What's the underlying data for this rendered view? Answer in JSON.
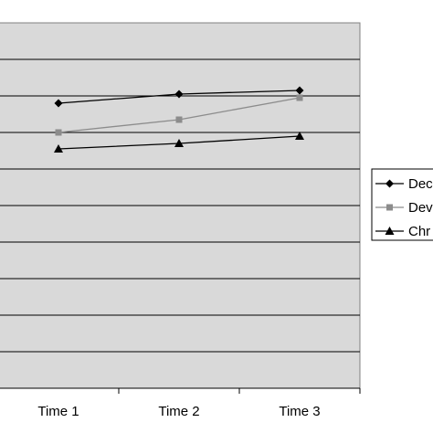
{
  "chart_data": {
    "type": "line",
    "categories": [
      "Time 1",
      "Time 2",
      "Time 3"
    ],
    "ylim": [
      0,
      10
    ],
    "grid": true,
    "legend_position": "right",
    "series": [
      {
        "name": "Dec",
        "marker": "diamond",
        "color": "#000000",
        "values": [
          7.8,
          8.05,
          8.15
        ]
      },
      {
        "name": "Dev",
        "marker": "square",
        "color": "#8c8c8c",
        "values": [
          7.0,
          7.35,
          7.95
        ]
      },
      {
        "name": "Chr",
        "marker": "triangle",
        "color": "#000000",
        "values": [
          6.55,
          6.7,
          6.9
        ]
      }
    ],
    "colors": {
      "plot_background": "#d9d9d9",
      "gridline": "#000000"
    }
  }
}
